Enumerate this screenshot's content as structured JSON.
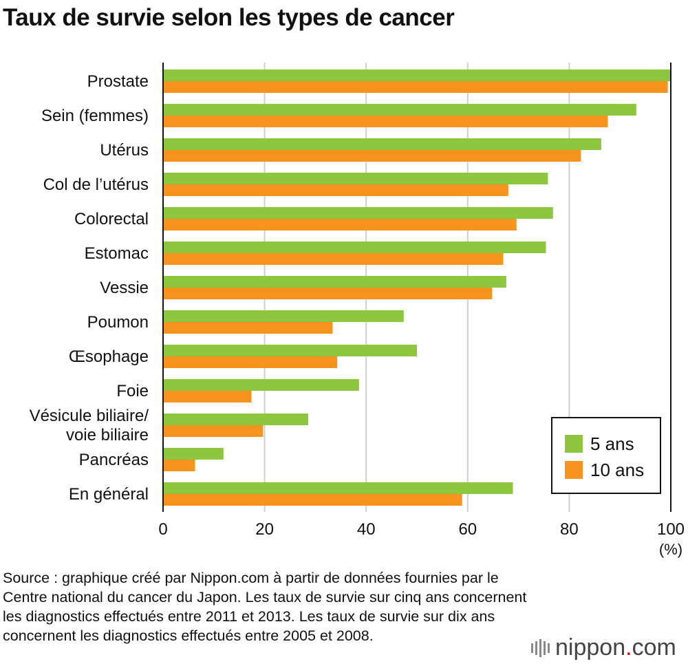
{
  "title": "Taux de survie selon les types de cancer",
  "chart_data": {
    "type": "bar",
    "orientation": "horizontal",
    "title": "Taux de survie selon les types de cancer",
    "categories": [
      [
        "Prostate"
      ],
      [
        "Sein (femmes)"
      ],
      [
        "Utérus"
      ],
      [
        "Col de l’utérus"
      ],
      [
        "Colorectal"
      ],
      [
        "Estomac"
      ],
      [
        "Vessie"
      ],
      [
        "Poumon"
      ],
      [
        "Œsophage"
      ],
      [
        "Foie"
      ],
      [
        "Vésicule biliaire/",
        "voie biliaire"
      ],
      [
        "Pancréas"
      ],
      [
        "En général"
      ]
    ],
    "series": [
      {
        "name": "5 ans",
        "color": "#8dc63f",
        "values": [
          100,
          93.2,
          86.3,
          75.8,
          76.8,
          75.4,
          67.6,
          47.4,
          50.0,
          38.6,
          28.6,
          11.9,
          68.9
        ]
      },
      {
        "name": "10 ans",
        "color": "#f7941d",
        "values": [
          99.4,
          87.6,
          82.3,
          68.0,
          69.6,
          67.0,
          64.8,
          33.4,
          34.3,
          17.4,
          19.7,
          6.3,
          58.9
        ]
      }
    ],
    "xlim": [
      0,
      100
    ],
    "xticks": [
      "0",
      "20",
      "40",
      "60",
      "80",
      "100"
    ],
    "xunit": "(%)",
    "grid": true,
    "legend_position": "bottom-right"
  },
  "source": "Source : graphique créé par Nippon.com à partir de données fournies par le Centre national du cancer du Japon. Les taux de survie sur cinq ans concernent les diagnostics effectués entre 2011 et 2013. Les taux de survie sur dix ans concernent les diagnostics effectués entre 2005 et 2008.",
  "logo": {
    "name": "nippon",
    "dot": ".",
    "suffix": "com",
    "dot_color": "#e60012"
  }
}
